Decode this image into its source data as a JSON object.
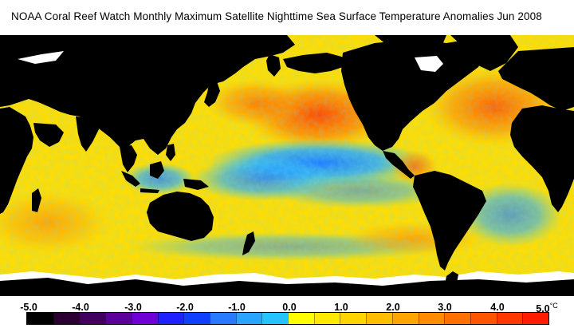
{
  "title": "NOAA Coral Reef Watch Monthly Maximum Satellite Nighttime Sea Surface Temperature Anomalies    Jun 2008",
  "legend": {
    "tick_labels": [
      "-5.0",
      "-4.0",
      "-3.0",
      "-2.0",
      "-1.0",
      "0.0",
      "1.0",
      "2.0",
      "3.0",
      "4.0",
      "5.0"
    ],
    "unit": "°C",
    "colors": [
      "#000000",
      "#2a0030",
      "#400060",
      "#5c0099",
      "#6f00d6",
      "#2020ff",
      "#1040ff",
      "#2a7aff",
      "#2aa4ff",
      "#26c4ff",
      "#ffff00",
      "#ffea00",
      "#ffd400",
      "#ffbd00",
      "#ffa500",
      "#ff8c00",
      "#ff7000",
      "#ff5400",
      "#ff3800",
      "#ff1c00"
    ]
  },
  "map": {
    "ocean_base_color": "#ffe100",
    "land_color": "#000000",
    "ice_color": "#ffffff"
  }
}
